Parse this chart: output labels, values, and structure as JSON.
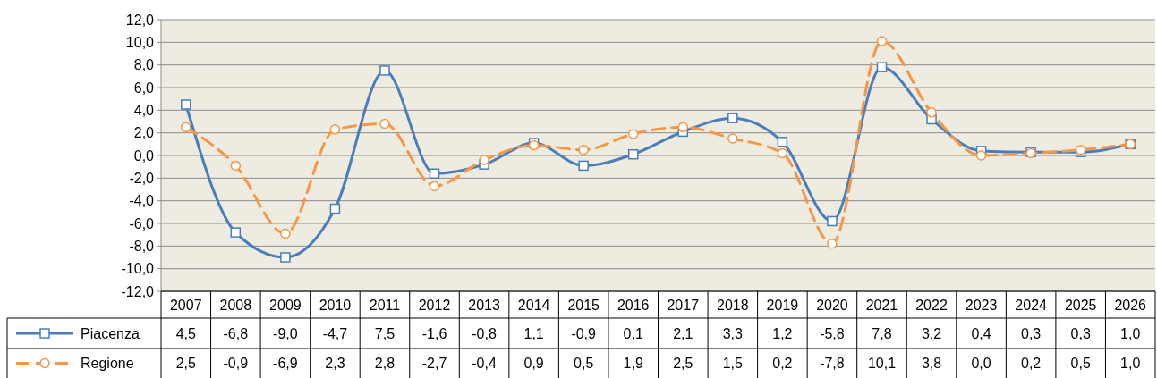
{
  "chart_data": {
    "type": "line",
    "categories": [
      "2007",
      "2008",
      "2009",
      "2010",
      "2011",
      "2012",
      "2013",
      "2014",
      "2015",
      "2016",
      "2017",
      "2018",
      "2019",
      "2020",
      "2021",
      "2022",
      "2023",
      "2024",
      "2025",
      "2026"
    ],
    "series": [
      {
        "name": "Piacenza",
        "color": "#4a7ebb",
        "marker": "square",
        "line_style": "solid",
        "values": [
          4.5,
          -6.8,
          -9.0,
          -4.7,
          7.5,
          -1.6,
          -0.8,
          1.1,
          -0.9,
          0.1,
          2.1,
          3.3,
          1.2,
          -5.8,
          7.8,
          3.2,
          0.4,
          0.3,
          0.3,
          1.0
        ],
        "value_labels": [
          "4,5",
          "-6,8",
          "-9,0",
          "-4,7",
          "7,5",
          "-1,6",
          "-0,8",
          "1,1",
          "-0,9",
          "0,1",
          "2,1",
          "3,3",
          "1,2",
          "-5,8",
          "7,8",
          "3,2",
          "0,4",
          "0,3",
          "0,3",
          "1,0"
        ]
      },
      {
        "name": "Regione",
        "color": "#f79646",
        "marker": "circle",
        "line_style": "dashed",
        "values": [
          2.5,
          -0.9,
          -6.9,
          2.3,
          2.8,
          -2.7,
          -0.4,
          0.9,
          0.5,
          1.9,
          2.5,
          1.5,
          0.2,
          -7.8,
          10.1,
          3.8,
          0.0,
          0.2,
          0.5,
          1.0
        ],
        "value_labels": [
          "2,5",
          "-0,9",
          "-6,9",
          "2,3",
          "2,8",
          "-2,7",
          "-0,4",
          "0,9",
          "0,5",
          "1,9",
          "2,5",
          "1,5",
          "0,2",
          "-7,8",
          "10,1",
          "3,8",
          "0,0",
          "0,2",
          "0,5",
          "1,0"
        ]
      }
    ],
    "ylim": [
      -12,
      12
    ],
    "yticks": [
      {
        "value": -12,
        "label": "-12,0"
      },
      {
        "value": -10,
        "label": "-10,0"
      },
      {
        "value": -8,
        "label": "-8,0"
      },
      {
        "value": -6,
        "label": "-6,0"
      },
      {
        "value": -4,
        "label": "-4,0"
      },
      {
        "value": -2,
        "label": "-2,0"
      },
      {
        "value": 0,
        "label": "0,0"
      },
      {
        "value": 2,
        "label": "2,0"
      },
      {
        "value": 4,
        "label": "4,0"
      },
      {
        "value": 6,
        "label": "6,0"
      },
      {
        "value": 8,
        "label": "8,0"
      },
      {
        "value": 10,
        "label": "10,0"
      },
      {
        "value": 12,
        "label": "12,0"
      }
    ],
    "grid": "y",
    "legend": "bottom left"
  }
}
